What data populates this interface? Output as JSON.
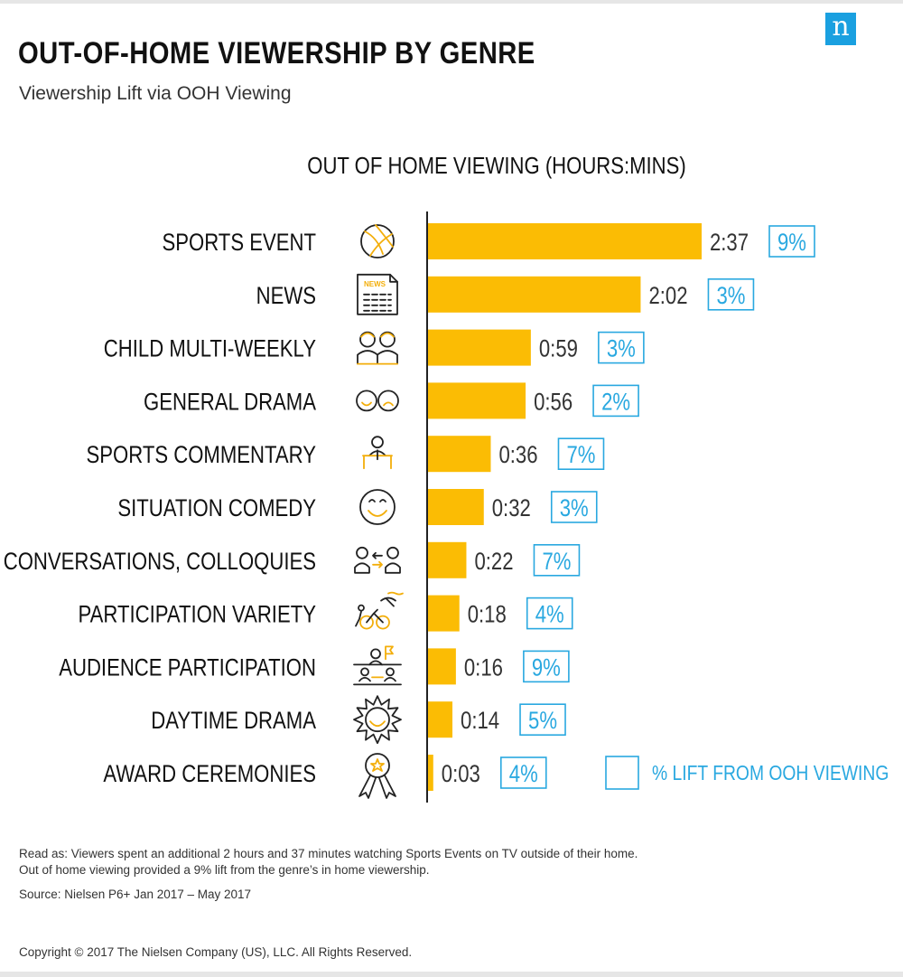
{
  "header": {
    "title": "OUT-OF-HOME VIEWERSHIP BY GENRE",
    "subtitle": "Viewership Lift via OOH Viewing",
    "logo_text": "n"
  },
  "chart_data": {
    "type": "bar",
    "orientation": "horizontal",
    "title": "OUT OF HOME VIEWING (HOURS:MINS)",
    "categories": [
      "SPORTS EVENT",
      "NEWS",
      "CHILD MULTI-WEEKLY",
      "GENERAL DRAMA",
      "SPORTS COMMENTARY",
      "SITUATION COMEDY",
      "CONVERSATIONS, COLLOQUIES",
      "PARTICIPATION VARIETY",
      "AUDIENCE PARTICIPATION",
      "DAYTIME DRAMA",
      "AWARD CEREMONIES"
    ],
    "icons": [
      "volleyball-icon",
      "newspaper-icon",
      "children-icon",
      "drama-faces-icon",
      "commentator-icon",
      "smiley-icon",
      "conversation-icon",
      "triathlon-icon",
      "audience-icon",
      "sun-icon",
      "award-ribbon-icon"
    ],
    "values_minutes": [
      157,
      122,
      59,
      56,
      36,
      32,
      22,
      18,
      16,
      14,
      3
    ],
    "value_labels": [
      "2:37",
      "2:02",
      "0:59",
      "0:56",
      "0:36",
      "0:32",
      "0:22",
      "0:18",
      "0:16",
      "0:14",
      "0:03"
    ],
    "lift_labels": [
      "9%",
      "3%",
      "3%",
      "2%",
      "7%",
      "3%",
      "7%",
      "4%",
      "9%",
      "5%",
      "4%"
    ],
    "legend": "% LIFT FROM OOH VIEWING",
    "bar_color": "#fbbc04",
    "lift_color": "#29a8e0"
  },
  "notes": {
    "read_as_1": "Read as: Viewers spent an additional 2 hours and 37 minutes watching Sports Events on TV outside of their home.",
    "read_as_2": "Out of home viewing provided a 9% lift from the genre’s in home viewership.",
    "source": "Source: Nielsen P6+ Jan 2017 – May 2017"
  },
  "footer": {
    "copyright": "Copyright © 2017 The Nielsen Company (US), LLC. All Rights Reserved."
  }
}
